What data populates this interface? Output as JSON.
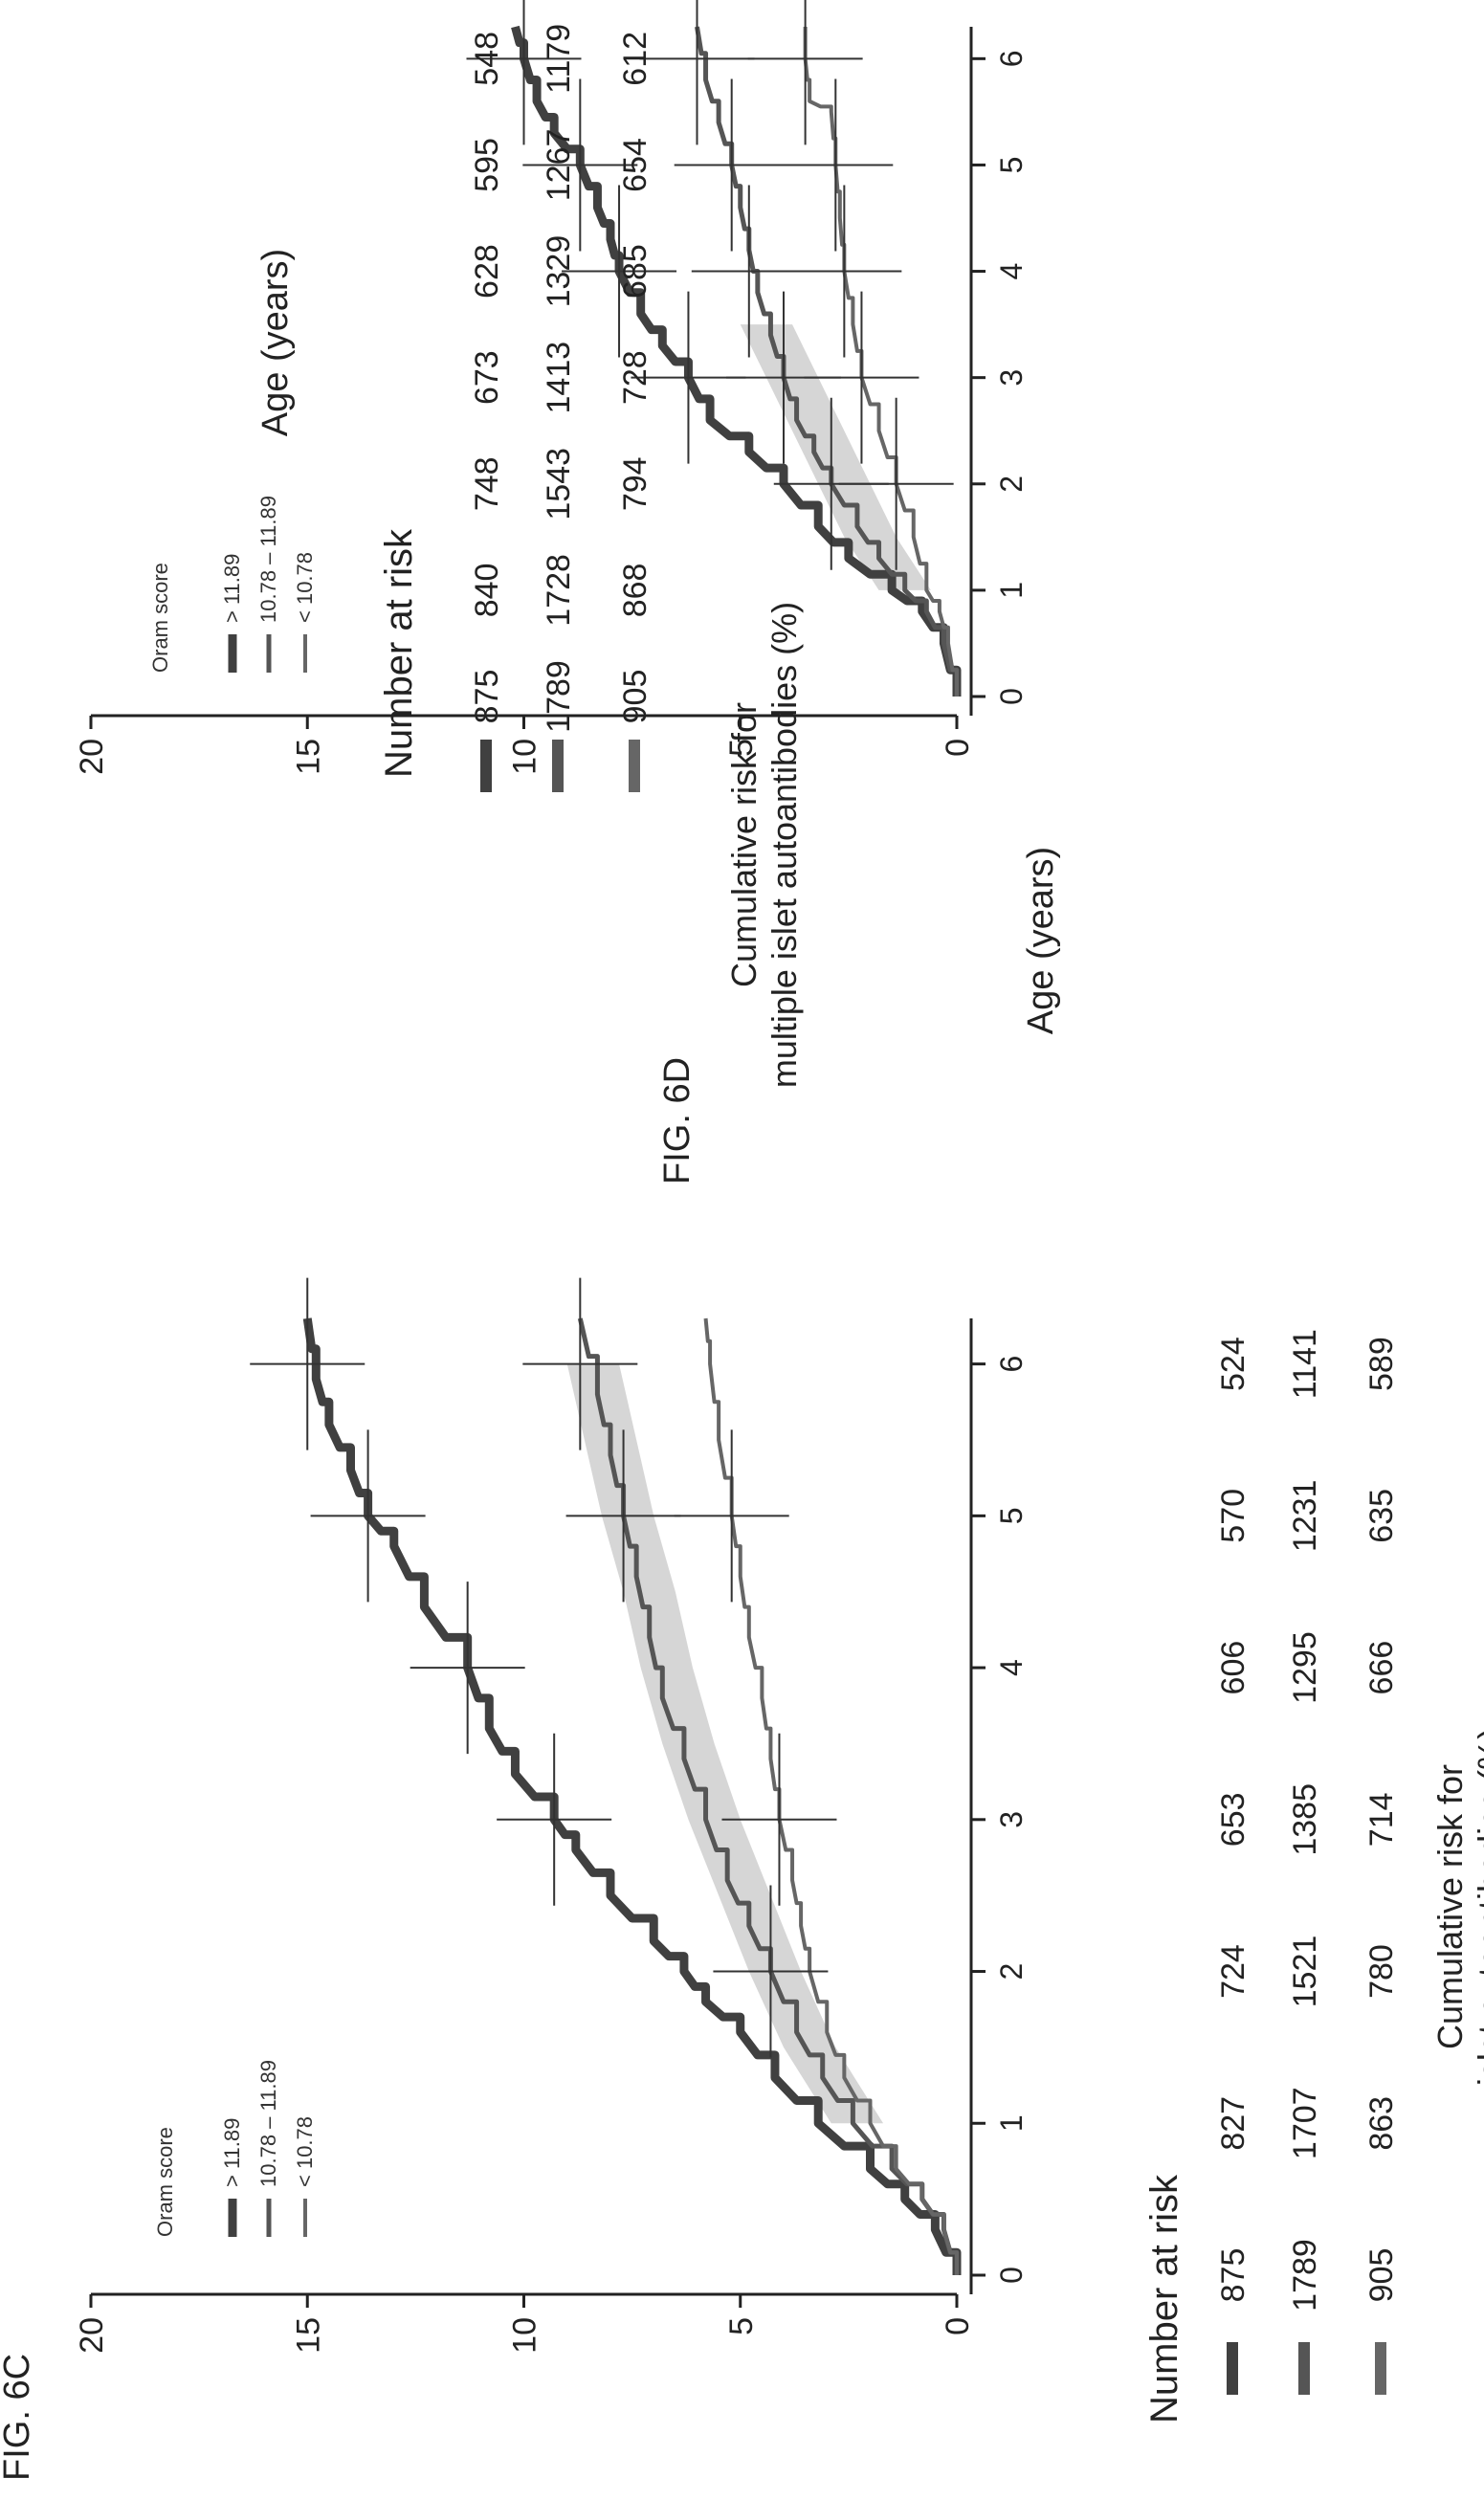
{
  "chart_data": [
    {
      "figure_label": "FIG. 6C",
      "type": "line",
      "xlabel": "Age (years)",
      "ylabel": [
        "Cumulative risk for",
        "islet autoantibodies (%)"
      ],
      "xlim": [
        0,
        6.3
      ],
      "ylim": [
        0,
        20
      ],
      "x_ticks": [
        "0",
        "1",
        "2",
        "3",
        "4",
        "5",
        "6"
      ],
      "y_ticks": [
        "0",
        "5",
        "10",
        "15",
        "20"
      ],
      "legend_title": "Oram score",
      "legend_position": "top-left",
      "series": [
        {
          "name": "> 11.89",
          "color": "#404040",
          "width": 9,
          "x": [
            0,
            0.3,
            0.5,
            0.7,
            1.0,
            1.3,
            1.6,
            1.8,
            2.0,
            2.2,
            2.5,
            2.8,
            3.0,
            3.3,
            3.6,
            4.0,
            4.4,
            4.8,
            5.0,
            5.3,
            5.6,
            5.9,
            6.3
          ],
          "y": [
            0,
            0.5,
            1.2,
            2.0,
            3.2,
            4.2,
            5.0,
            5.8,
            6.3,
            7.0,
            8.0,
            8.8,
            9.3,
            10.2,
            10.8,
            11.3,
            12.3,
            13.0,
            13.6,
            14.0,
            14.5,
            14.8,
            15.0
          ]
        },
        {
          "name": "10.78 – 11.89",
          "color": "#555555",
          "width": 5,
          "x": [
            0,
            0.3,
            0.5,
            0.7,
            1.0,
            1.3,
            1.6,
            2.0,
            2.3,
            2.6,
            3.0,
            3.4,
            3.8,
            4.2,
            4.6,
            5.0,
            5.4,
            5.8,
            6.3
          ],
          "y": [
            0,
            0.3,
            0.8,
            1.5,
            2.4,
            3.1,
            3.7,
            4.3,
            4.8,
            5.3,
            5.8,
            6.3,
            6.8,
            7.1,
            7.4,
            7.7,
            8.0,
            8.3,
            8.7
          ]
        },
        {
          "name": "< 10.78",
          "color": "#666666",
          "width": 4,
          "x": [
            0,
            0.3,
            0.5,
            0.7,
            1.0,
            1.3,
            1.6,
            2.0,
            2.3,
            2.6,
            3.0,
            3.4,
            3.8,
            4.2,
            4.6,
            5.0,
            5.5,
            6.0,
            6.3
          ],
          "y": [
            0,
            0.3,
            0.8,
            1.4,
            2.0,
            2.6,
            3.0,
            3.4,
            3.6,
            3.8,
            4.1,
            4.3,
            4.5,
            4.8,
            5.0,
            5.2,
            5.5,
            5.7,
            5.8
          ]
        }
      ],
      "confidence_band_x": [
        1.0,
        1.5,
        2.0,
        2.5,
        3.0,
        3.5,
        4.0,
        4.5,
        5.0,
        5.5,
        6.0
      ],
      "confidence_band_center": [
        2.3,
        3.4,
        4.2,
        4.9,
        5.6,
        6.2,
        6.7,
        7.1,
        7.6,
        8.0,
        8.4
      ],
      "number_at_risk_title": "Number at risk",
      "number_at_risk": [
        {
          "series": "> 11.89",
          "values": [
            "875",
            "827",
            "724",
            "653",
            "606",
            "570",
            "524"
          ]
        },
        {
          "series": "10.78 – 11.89",
          "values": [
            "1789",
            "1707",
            "1521",
            "1385",
            "1295",
            "1231",
            "1141"
          ]
        },
        {
          "series": "< 10.78",
          "values": [
            "905",
            "863",
            "780",
            "714",
            "666",
            "635",
            "589"
          ]
        }
      ]
    },
    {
      "figure_label": "FIG. 6D",
      "type": "line",
      "xlabel": "Age (years)",
      "ylabel": [
        "Cumulative risk for",
        "multiple islet autoantibodies (%)"
      ],
      "xlim": [
        0,
        6.3
      ],
      "ylim": [
        0,
        20
      ],
      "x_ticks": [
        "0",
        "1",
        "2",
        "3",
        "4",
        "5",
        "6"
      ],
      "y_ticks": [
        "0",
        "5",
        "10",
        "15",
        "20"
      ],
      "legend_title": "Oram score",
      "legend_position": "top-left",
      "series": [
        {
          "name": "> 11.89",
          "color": "#404040",
          "width": 9,
          "x": [
            0,
            0.5,
            0.8,
            1.0,
            1.3,
            1.6,
            2.0,
            2.3,
            2.6,
            3.0,
            3.3,
            3.6,
            4.0,
            4.3,
            4.6,
            5.0,
            5.3,
            5.6,
            6.0,
            6.3
          ],
          "y": [
            0,
            0.3,
            0.8,
            1.5,
            2.5,
            3.2,
            4.0,
            4.8,
            5.7,
            6.2,
            6.8,
            7.3,
            7.8,
            8.0,
            8.3,
            8.7,
            9.3,
            9.7,
            10.0,
            10.2
          ]
        },
        {
          "name": "10.78 – 11.89",
          "color": "#555555",
          "width": 5,
          "x": [
            0,
            0.5,
            0.8,
            1.0,
            1.3,
            1.6,
            2.0,
            2.3,
            2.6,
            3.0,
            3.4,
            3.8,
            4.2,
            4.6,
            5.0,
            5.4,
            5.8,
            6.3
          ],
          "y": [
            0,
            0.3,
            0.7,
            1.2,
            1.8,
            2.3,
            2.9,
            3.3,
            3.7,
            4.0,
            4.3,
            4.6,
            4.8,
            5.0,
            5.2,
            5.5,
            5.8,
            6.0
          ]
        },
        {
          "name": "< 10.78",
          "color": "#666666",
          "width": 4,
          "x": [
            0,
            0.5,
            0.8,
            1.0,
            1.5,
            2.0,
            2.5,
            3.0,
            3.5,
            4.0,
            4.5,
            5.0,
            5.5,
            5.6,
            6.0,
            6.3
          ],
          "y": [
            0,
            0.2,
            0.4,
            0.7,
            1.0,
            1.4,
            1.8,
            2.2,
            2.4,
            2.6,
            2.7,
            2.8,
            2.9,
            3.4,
            3.5,
            3.5
          ]
        }
      ],
      "confidence_band_x": [
        1.0,
        1.5,
        2.0,
        2.5,
        3.0,
        3.5
      ],
      "confidence_band_center": [
        1.2,
        2.0,
        2.6,
        3.2,
        3.8,
        4.4
      ],
      "number_at_risk_title": "Number at risk",
      "number_at_risk": [
        {
          "series": "> 11.89",
          "values": [
            "875",
            "840",
            "748",
            "673",
            "628",
            "595",
            "548"
          ]
        },
        {
          "series": "10.78 – 11.89",
          "values": [
            "1789",
            "1728",
            "1543",
            "1413",
            "1329",
            "1267",
            "1179"
          ]
        },
        {
          "series": "< 10.78",
          "values": [
            "905",
            "868",
            "794",
            "728",
            "685",
            "654",
            "612"
          ]
        }
      ]
    }
  ]
}
